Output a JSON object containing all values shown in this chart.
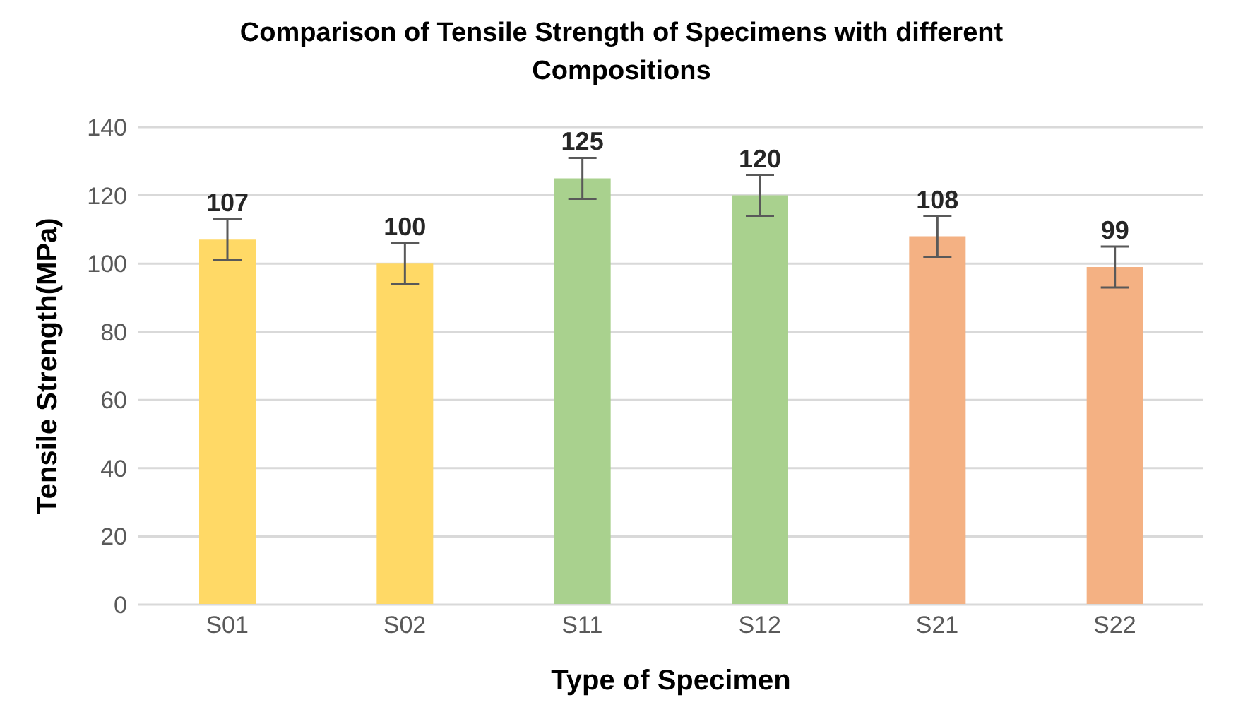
{
  "chart_data": {
    "type": "bar",
    "title": "Comparison of Tensile Strength of Specimens with different Compositions",
    "xlabel": "Type of Specimen",
    "ylabel": "Tensile Strength(MPa)",
    "categories": [
      "S01",
      "S02",
      "S11",
      "S12",
      "S21",
      "S22"
    ],
    "values": [
      107,
      100,
      125,
      120,
      108,
      99
    ],
    "colors": [
      "#ffd966",
      "#ffd966",
      "#a9d18e",
      "#a9d18e",
      "#f4b183",
      "#f4b183"
    ],
    "errors": [
      6,
      6,
      6,
      6,
      6,
      6
    ],
    "ylim": [
      0,
      140
    ],
    "yticks": [
      0,
      20,
      40,
      60,
      80,
      100,
      120,
      140
    ],
    "grid": "y",
    "data_labels": true
  }
}
